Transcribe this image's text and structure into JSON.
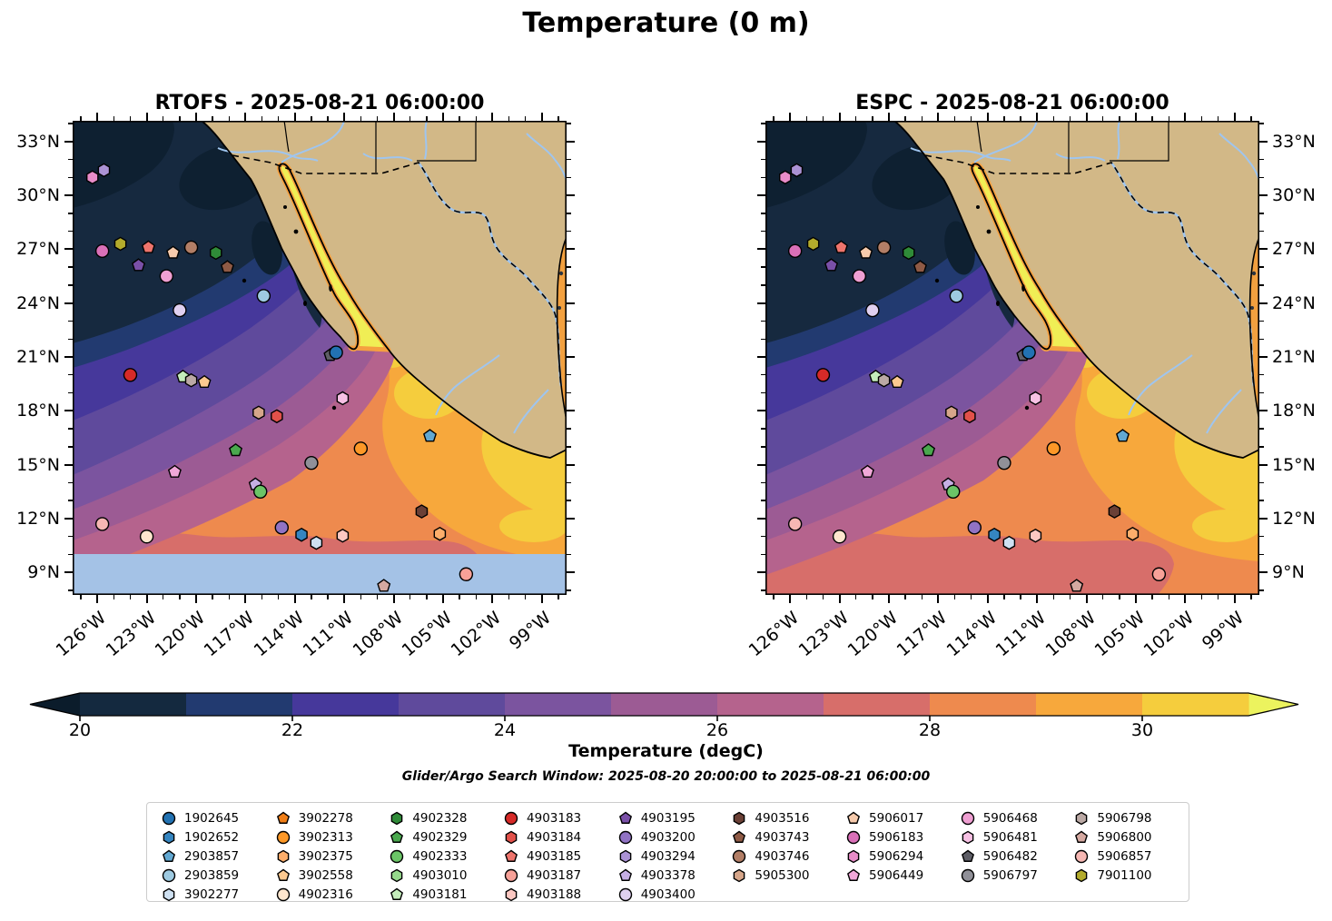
{
  "chart_data": {
    "type": "heatmap",
    "title": "Temperature (0 m)",
    "subtitle": "Glider/Argo Search Window: 2025-08-20 20:00:00 to 2025-08-21 06:00:00",
    "panels": [
      {
        "id": "rtofs",
        "title": "RTOFS - 2025-08-21 06:00:00",
        "model": "RTOFS",
        "valid_time": "2025-08-21 06:00:00",
        "y_labels_side": "left",
        "south_mask": true
      },
      {
        "id": "espc",
        "title": "ESPC - 2025-08-21 06:00:00",
        "model": "ESPC",
        "valid_time": "2025-08-21 06:00:00",
        "y_labels_side": "right",
        "south_mask": false
      }
    ],
    "axes": {
      "lon_min": -127.5,
      "lon_max": -97.5,
      "lat_min": 7.75,
      "lat_max": 34.15,
      "lon_ticks": [
        {
          "lon": -126,
          "label": "126°W"
        },
        {
          "lon": -123,
          "label": "123°W"
        },
        {
          "lon": -120,
          "label": "120°W"
        },
        {
          "lon": -117,
          "label": "117°W"
        },
        {
          "lon": -114,
          "label": "114°W"
        },
        {
          "lon": -111,
          "label": "111°W"
        },
        {
          "lon": -108,
          "label": "108°W"
        },
        {
          "lon": -105,
          "label": "105°W"
        },
        {
          "lon": -102,
          "label": "102°W"
        },
        {
          "lon": -99,
          "label": "99°W"
        }
      ],
      "lat_ticks": [
        {
          "lat": 9,
          "label": "9°N"
        },
        {
          "lat": 12,
          "label": "12°N"
        },
        {
          "lat": 15,
          "label": "15°N"
        },
        {
          "lat": 18,
          "label": "18°N"
        },
        {
          "lat": 21,
          "label": "21°N"
        },
        {
          "lat": 24,
          "label": "24°N"
        },
        {
          "lat": 27,
          "label": "27°N"
        },
        {
          "lat": 30,
          "label": "30°N"
        },
        {
          "lat": 33,
          "label": "33°N"
        }
      ],
      "minor_tick_interval_deg": 1
    },
    "colorbar": {
      "label": "Temperature (degC)",
      "level_min": 20,
      "level_max": 31,
      "level_step": 1,
      "tick_values": [
        20,
        22,
        24,
        26,
        28,
        30
      ],
      "segment_colors": [
        "#14293f",
        "#223a70",
        "#46389b",
        "#5f4a9c",
        "#7b549f",
        "#9c5b94",
        "#b5638d",
        "#d76e6a",
        "#ee8a4e",
        "#f7a83c",
        "#f5cd3d"
      ],
      "under_color": "#0b1c2b",
      "over_color": "#ecf35e"
    },
    "map_colors": {
      "land": "#d2b887",
      "gulf_water": "#f0ee55",
      "gulf_fringe": "#f5a040",
      "mask_band": "#a4c2e6",
      "river": "#9fc5ef",
      "coastline": "#000000"
    },
    "legend_items": [
      {
        "id": "1902645",
        "shape": "circle",
        "color": "#2272b2"
      },
      {
        "id": "1902652",
        "shape": "hexagon",
        "color": "#3585c0"
      },
      {
        "id": "2903857",
        "shape": "pentagon",
        "color": "#62a8d2"
      },
      {
        "id": "2903859",
        "shape": "circle",
        "color": "#9ecae1"
      },
      {
        "id": "3902277",
        "shape": "hexagon",
        "color": "#cfe1f2"
      },
      {
        "id": "3902278",
        "shape": "pentagon",
        "color": "#f07e17"
      },
      {
        "id": "3902313",
        "shape": "circle",
        "color": "#fd9827"
      },
      {
        "id": "3902375",
        "shape": "hexagon",
        "color": "#fdae6b"
      },
      {
        "id": "3902558",
        "shape": "pentagon",
        "color": "#fdc990"
      },
      {
        "id": "4902316",
        "shape": "circle",
        "color": "#fee6ce"
      },
      {
        "id": "4902328",
        "shape": "hexagon",
        "color": "#2f8b38"
      },
      {
        "id": "4902329",
        "shape": "pentagon",
        "color": "#4aa84e"
      },
      {
        "id": "4902333",
        "shape": "circle",
        "color": "#6bc467"
      },
      {
        "id": "4903010",
        "shape": "hexagon",
        "color": "#96d98c"
      },
      {
        "id": "4903181",
        "shape": "pentagon",
        "color": "#c4ecbb"
      },
      {
        "id": "4903183",
        "shape": "circle",
        "color": "#d62a28"
      },
      {
        "id": "4903184",
        "shape": "hexagon",
        "color": "#e2514a"
      },
      {
        "id": "4903185",
        "shape": "pentagon",
        "color": "#ee746c"
      },
      {
        "id": "4903187",
        "shape": "circle",
        "color": "#f7a198"
      },
      {
        "id": "4903188",
        "shape": "hexagon",
        "color": "#fcc8c2"
      },
      {
        "id": "4903195",
        "shape": "pentagon",
        "color": "#7a50a8"
      },
      {
        "id": "4903200",
        "shape": "circle",
        "color": "#9173c4"
      },
      {
        "id": "4903294",
        "shape": "hexagon",
        "color": "#ab92d4"
      },
      {
        "id": "4903378",
        "shape": "pentagon",
        "color": "#c6afe4"
      },
      {
        "id": "4903400",
        "shape": "circle",
        "color": "#e0d0f0"
      },
      {
        "id": "4903516",
        "shape": "hexagon",
        "color": "#6b4036"
      },
      {
        "id": "4903743",
        "shape": "pentagon",
        "color": "#8e5a45"
      },
      {
        "id": "4903746",
        "shape": "circle",
        "color": "#b27e66"
      },
      {
        "id": "5905300",
        "shape": "hexagon",
        "color": "#d6a68a"
      },
      {
        "id": "5906017",
        "shape": "pentagon",
        "color": "#f6caac"
      },
      {
        "id": "5906183",
        "shape": "circle",
        "color": "#da70b8"
      },
      {
        "id": "5906294",
        "shape": "hexagon",
        "color": "#e88cc8"
      },
      {
        "id": "5906449",
        "shape": "pentagon",
        "color": "#f1a8d9"
      },
      {
        "id": "5906468",
        "shape": "circle",
        "color": "#ef9fd2"
      },
      {
        "id": "5906481",
        "shape": "hexagon",
        "color": "#f7c1e4"
      },
      {
        "id": "5906482",
        "shape": "pentagon",
        "color": "#5e5e66"
      },
      {
        "id": "5906797",
        "shape": "circle",
        "color": "#909098"
      },
      {
        "id": "5906798",
        "shape": "hexagon",
        "color": "#bba9a5"
      },
      {
        "id": "5906800",
        "shape": "pentagon",
        "color": "#d5a9a1"
      },
      {
        "id": "5906857",
        "shape": "circle",
        "color": "#f6b7b3"
      },
      {
        "id": "7901100",
        "shape": "hexagon",
        "color": "#b3ab2c"
      }
    ],
    "platform_markers": [
      {
        "id": "5906294",
        "lon": -126.3,
        "lat": 31.0
      },
      {
        "id": "4903294",
        "lon": -125.6,
        "lat": 31.4
      },
      {
        "id": "5906183",
        "lon": -125.7,
        "lat": 26.9
      },
      {
        "id": "7901100",
        "lon": -124.6,
        "lat": 27.3
      },
      {
        "id": "4903185",
        "lon": -122.9,
        "lat": 27.1
      },
      {
        "id": "5906017",
        "lon": -121.4,
        "lat": 26.8
      },
      {
        "id": "4903746",
        "lon": -120.3,
        "lat": 27.1
      },
      {
        "id": "4902328",
        "lon": -118.8,
        "lat": 26.8
      },
      {
        "id": "4903195",
        "lon": -123.5,
        "lat": 26.1
      },
      {
        "id": "5906468",
        "lon": -121.8,
        "lat": 25.5
      },
      {
        "id": "4903743",
        "lon": -118.1,
        "lat": 26.0
      },
      {
        "id": "2903859",
        "lon": -115.9,
        "lat": 24.4
      },
      {
        "id": "4903400",
        "lon": -121.0,
        "lat": 23.6
      },
      {
        "id": "5906482",
        "lon": -111.85,
        "lat": 21.1
      },
      {
        "id": "1902645",
        "lon": -111.5,
        "lat": 21.25
      },
      {
        "id": "4903183",
        "lon": -124.0,
        "lat": 20.0
      },
      {
        "id": "4903181",
        "lon": -120.8,
        "lat": 19.9
      },
      {
        "id": "5906798",
        "lon": -120.3,
        "lat": 19.7
      },
      {
        "id": "3902558",
        "lon": -119.5,
        "lat": 19.6
      },
      {
        "id": "5905300",
        "lon": -116.2,
        "lat": 17.9
      },
      {
        "id": "4903184",
        "lon": -115.1,
        "lat": 17.7
      },
      {
        "id": "5906481",
        "lon": -111.1,
        "lat": 18.7
      },
      {
        "id": "4902329",
        "lon": -117.6,
        "lat": 15.8
      },
      {
        "id": "3902313",
        "lon": -110.0,
        "lat": 15.9
      },
      {
        "id": "2903857",
        "lon": -105.8,
        "lat": 16.6
      },
      {
        "id": "5906449",
        "lon": -121.3,
        "lat": 14.6
      },
      {
        "id": "4903378",
        "lon": -116.4,
        "lat": 13.9
      },
      {
        "id": "4902333",
        "lon": -116.1,
        "lat": 13.5
      },
      {
        "id": "5906797",
        "lon": -113.0,
        "lat": 15.1
      },
      {
        "id": "5906857",
        "lon": -125.7,
        "lat": 11.7
      },
      {
        "id": "4902316",
        "lon": -123.0,
        "lat": 11.0
      },
      {
        "id": "4903200",
        "lon": -114.8,
        "lat": 11.5
      },
      {
        "id": "4903516",
        "lon": -106.3,
        "lat": 12.4
      },
      {
        "id": "1902652",
        "lon": -113.6,
        "lat": 11.1
      },
      {
        "id": "3902277",
        "lon": -112.7,
        "lat": 10.65
      },
      {
        "id": "4903188",
        "lon": -111.1,
        "lat": 11.05
      },
      {
        "id": "3902375",
        "lon": -105.2,
        "lat": 11.15
      },
      {
        "id": "4903187",
        "lon": -103.6,
        "lat": 8.9
      },
      {
        "id": "5906800",
        "lon": -108.6,
        "lat": 8.25
      }
    ]
  }
}
